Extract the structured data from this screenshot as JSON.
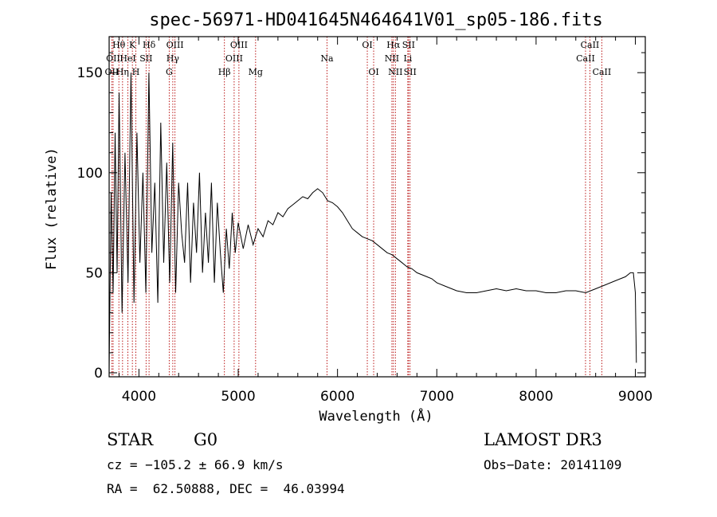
{
  "chart_data": {
    "type": "line",
    "title": "spec-56971-HD041645N464641V01_sp05-186.fits",
    "xlabel": "Wavelength (Å)",
    "ylabel": "Flux (relative)",
    "xlim": [
      3700,
      9100
    ],
    "ylim": [
      -2,
      168
    ],
    "x_ticks": [
      4000,
      5000,
      6000,
      7000,
      8000,
      9000
    ],
    "y_ticks": [
      0,
      50,
      100,
      150
    ],
    "series": [
      {
        "name": "spectrum",
        "x": [
          3700,
          3720,
          3740,
          3760,
          3780,
          3800,
          3830,
          3860,
          3890,
          3920,
          3950,
          3980,
          4010,
          4040,
          4070,
          4100,
          4130,
          4160,
          4190,
          4220,
          4250,
          4280,
          4310,
          4340,
          4370,
          4400,
          4430,
          4460,
          4490,
          4520,
          4550,
          4580,
          4610,
          4640,
          4670,
          4700,
          4730,
          4760,
          4790,
          4820,
          4850,
          4880,
          4910,
          4940,
          4970,
          5000,
          5050,
          5100,
          5150,
          5200,
          5250,
          5300,
          5350,
          5400,
          5450,
          5500,
          5550,
          5600,
          5650,
          5700,
          5750,
          5800,
          5850,
          5900,
          5950,
          6000,
          6050,
          6100,
          6150,
          6200,
          6250,
          6300,
          6350,
          6400,
          6450,
          6500,
          6550,
          6600,
          6650,
          6700,
          6750,
          6800,
          6850,
          6900,
          6950,
          7000,
          7100,
          7200,
          7300,
          7400,
          7500,
          7600,
          7700,
          7800,
          7900,
          8000,
          8100,
          8200,
          8300,
          8400,
          8500,
          8600,
          8700,
          8800,
          8850,
          8900,
          8950,
          8980,
          9000,
          9010
        ],
        "y": [
          2,
          90,
          40,
          120,
          50,
          140,
          30,
          110,
          45,
          150,
          35,
          120,
          55,
          100,
          40,
          150,
          60,
          95,
          35,
          125,
          55,
          105,
          45,
          115,
          40,
          95,
          70,
          55,
          95,
          45,
          85,
          60,
          100,
          50,
          80,
          55,
          95,
          45,
          85,
          60,
          40,
          72,
          52,
          80,
          60,
          75,
          62,
          74,
          64,
          72,
          68,
          76,
          74,
          80,
          78,
          82,
          84,
          86,
          88,
          87,
          90,
          92,
          90,
          86,
          85,
          83,
          80,
          76,
          72,
          70,
          68,
          67,
          66,
          64,
          62,
          60,
          59,
          57,
          55,
          53,
          52,
          50,
          49,
          48,
          47,
          45,
          43,
          41,
          40,
          40,
          41,
          42,
          41,
          42,
          41,
          41,
          40,
          40,
          41,
          41,
          40,
          42,
          44,
          46,
          47,
          48,
          50,
          50,
          40,
          5
        ]
      }
    ],
    "lines": [
      {
        "name": "OII",
        "x": 3727,
        "row": 2
      },
      {
        "name": "Hθ",
        "x": 3798,
        "row": 0
      },
      {
        "name": "OII",
        "x": 3740,
        "row": 1
      },
      {
        "name": "Hη",
        "x": 3835,
        "row": 2
      },
      {
        "name": "HeI",
        "x": 3889,
        "row": 1
      },
      {
        "name": "K",
        "x": 3934,
        "row": 0
      },
      {
        "name": "H",
        "x": 3969,
        "row": 2
      },
      {
        "name": "SII",
        "x": 4072,
        "row": 1
      },
      {
        "name": "Hδ",
        "x": 4102,
        "row": 0
      },
      {
        "name": "G",
        "x": 4305,
        "row": 2
      },
      {
        "name": "Hγ",
        "x": 4341,
        "row": 1
      },
      {
        "name": "OIII",
        "x": 4363,
        "row": 0
      },
      {
        "name": "Hβ",
        "x": 4861,
        "row": 2
      },
      {
        "name": "OIII",
        "x": 4959,
        "row": 1
      },
      {
        "name": "OIII",
        "x": 5007,
        "row": 0
      },
      {
        "name": "Mg",
        "x": 5175,
        "row": 2
      },
      {
        "name": "Na",
        "x": 5894,
        "row": 1
      },
      {
        "name": "OI",
        "x": 6300,
        "row": 0
      },
      {
        "name": "OI",
        "x": 6364,
        "row": 2
      },
      {
        "name": "NII",
        "x": 6548,
        "row": 1
      },
      {
        "name": "Hα",
        "x": 6563,
        "row": 0
      },
      {
        "name": "NII",
        "x": 6583,
        "row": 2
      },
      {
        "name": "Li",
        "x": 6708,
        "row": 1
      },
      {
        "name": "SII",
        "x": 6716,
        "row": 0
      },
      {
        "name": "SII",
        "x": 6731,
        "row": 2
      },
      {
        "name": "CaII",
        "x": 8498,
        "row": 1
      },
      {
        "name": "CaII",
        "x": 8542,
        "row": 0
      },
      {
        "name": "CaII",
        "x": 8662,
        "row": 2
      }
    ]
  },
  "info": {
    "object_class": "STAR",
    "subclass": "G0",
    "survey": "LAMOST DR3",
    "cz": "cz = −105.2 ± 66.9 km/s",
    "obs_date": "Obs−Date: 20141109",
    "coords": "RA =  62.50888, DEC =  46.03994"
  }
}
